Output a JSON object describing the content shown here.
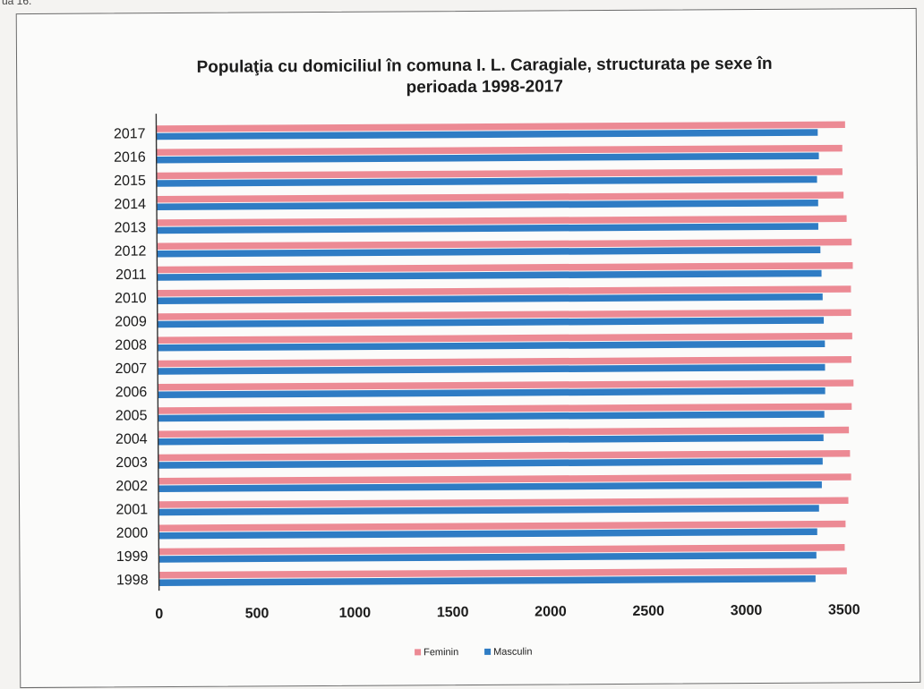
{
  "corner_text": "ua 16.",
  "chart_data": {
    "type": "bar",
    "orientation": "horizontal",
    "title": "Populaţia cu domiciliul în comuna I. L. Caragiale, structurata pe sexe în perioada 1998-2017",
    "title_lines": [
      "Populaţia cu domiciliul în comuna I. L. Caragiale, structurata pe sexe în",
      "perioada 1998-2017"
    ],
    "categories": [
      "1998",
      "1999",
      "2000",
      "2001",
      "2002",
      "2003",
      "2004",
      "2005",
      "2006",
      "2007",
      "2008",
      "2009",
      "2010",
      "2011",
      "2012",
      "2013",
      "2014",
      "2015",
      "2016",
      "2017"
    ],
    "series": [
      {
        "name": "Feminin",
        "color": "#ec8a94",
        "values": [
          3515,
          3505,
          3510,
          3525,
          3540,
          3535,
          3530,
          3545,
          3555,
          3545,
          3550,
          3545,
          3545,
          3555,
          3550,
          3525,
          3510,
          3505,
          3505,
          3520
        ]
      },
      {
        "name": "Masculin",
        "color": "#2f7cc4",
        "values": [
          3355,
          3360,
          3365,
          3375,
          3390,
          3395,
          3400,
          3405,
          3410,
          3410,
          3410,
          3405,
          3400,
          3395,
          3390,
          3380,
          3380,
          3375,
          3385,
          3380
        ]
      }
    ],
    "xlim": [
      0,
      3500
    ],
    "xticks": [
      "0",
      "500",
      "1000",
      "1500",
      "2000",
      "2500",
      "3000",
      "3500"
    ],
    "grid": false,
    "legend_position": "bottom"
  }
}
